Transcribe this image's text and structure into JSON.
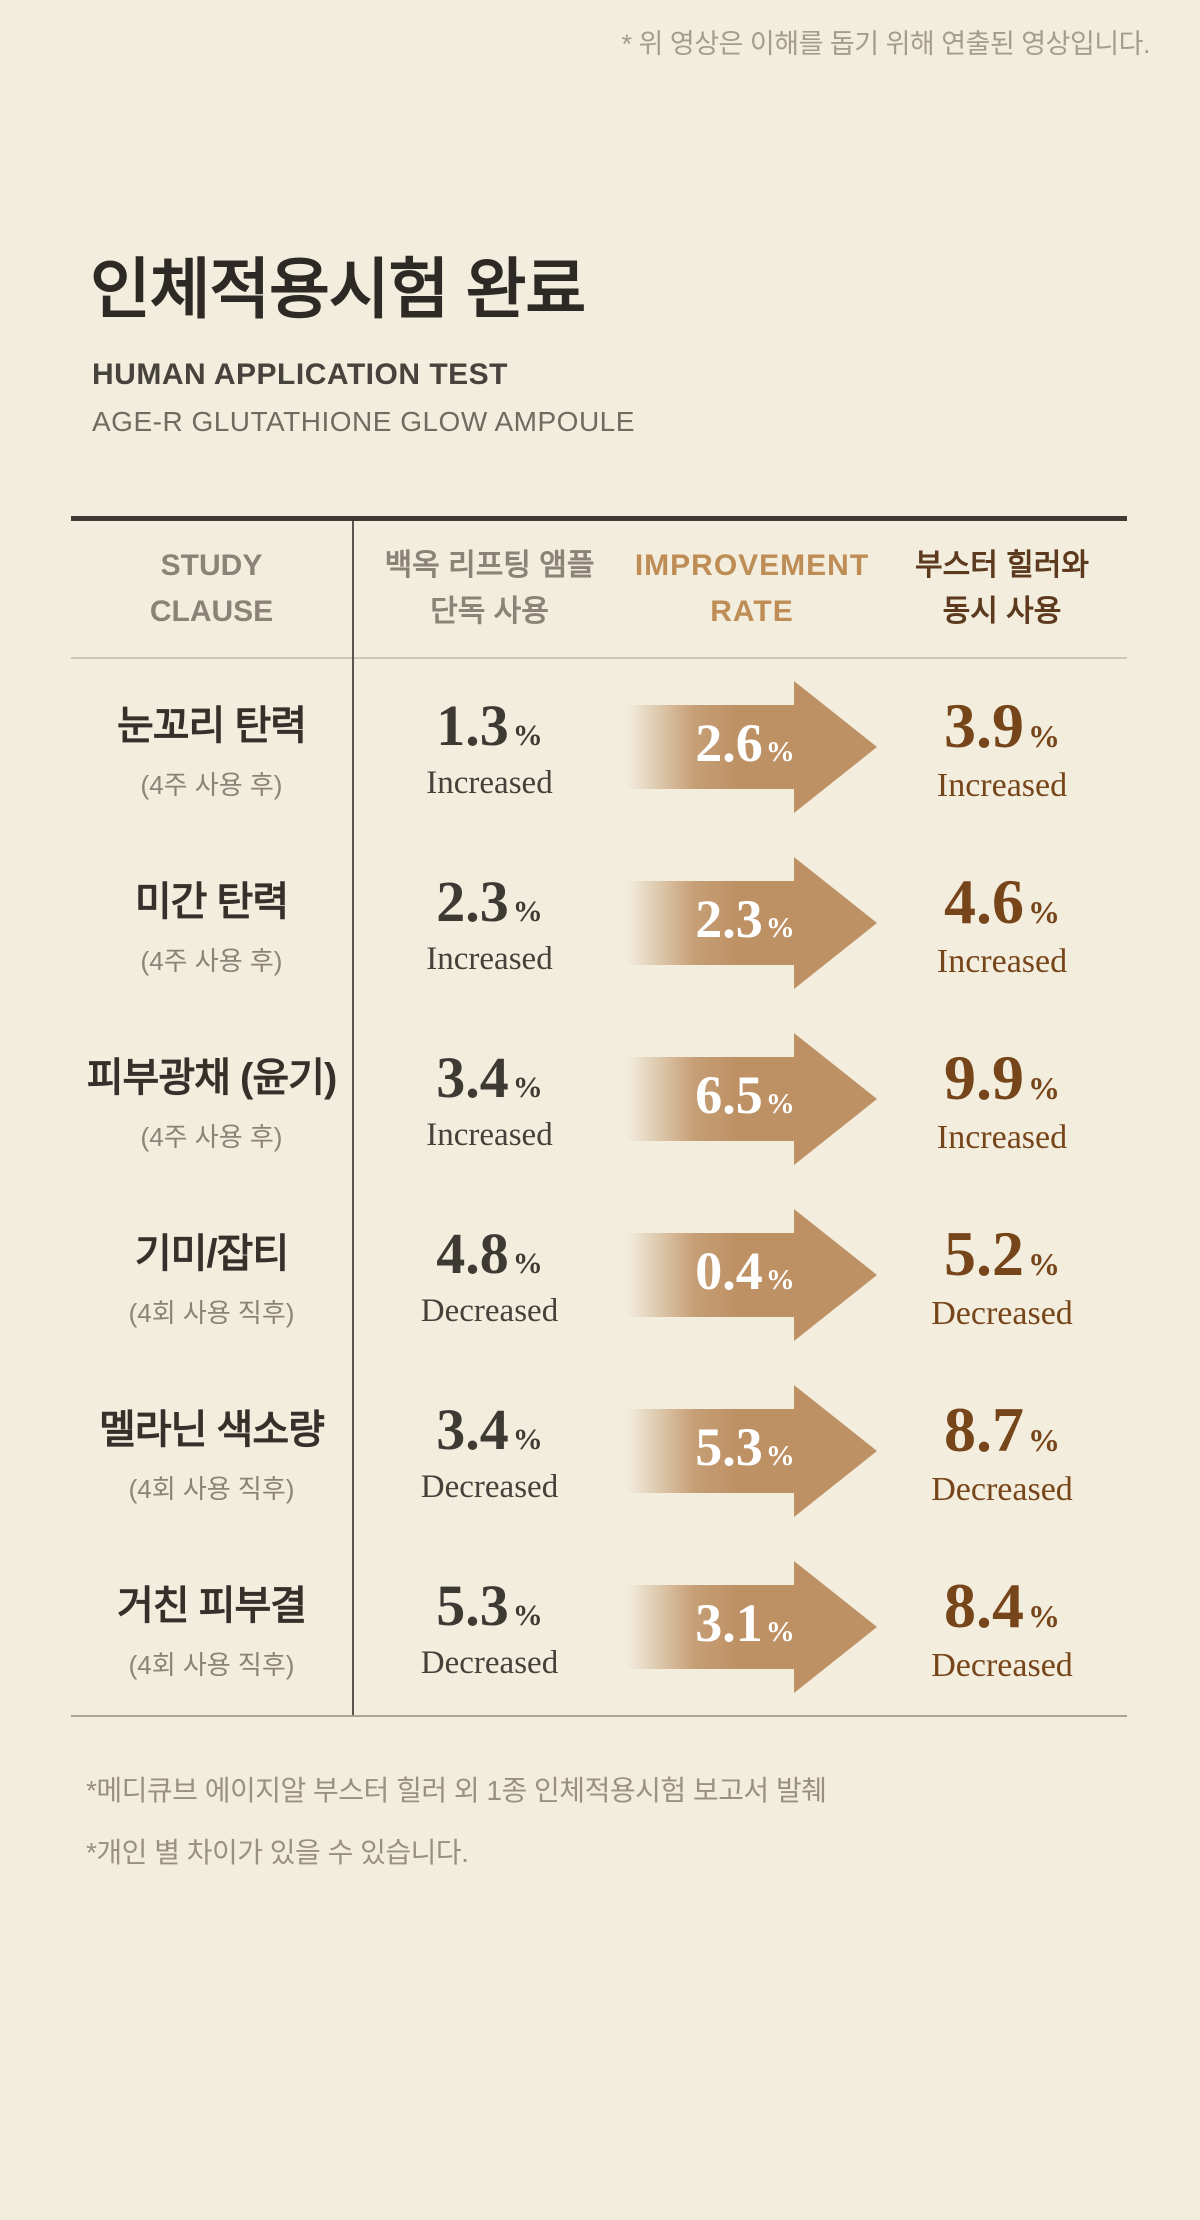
{
  "top_note": "* 위 영상은 이해를 돕기 위해 연출된 영상입니다.",
  "header": {
    "title": "인체적용시험 완료",
    "subtitle_en": "HUMAN APPLICATION TEST",
    "product": "AGE-R GLUTATHIONE GLOW AMPOULE"
  },
  "table": {
    "percent": "%",
    "columns": [
      {
        "line1": "STUDY",
        "line2": "CLAUSE"
      },
      {
        "line1": "백옥 리프팅 앰플",
        "line2": "단독 사용"
      },
      {
        "line1": "IMPROVEMENT",
        "line2": "RATE"
      },
      {
        "line1": "부스터 힐러와",
        "line2": "동시 사용"
      }
    ],
    "rows": [
      {
        "name": "눈꼬리 탄력",
        "condition": "(4주 사용 후)",
        "single_value": "1.3",
        "single_label": "Increased",
        "improvement_value": "2.6",
        "combined_value": "3.9",
        "combined_label": "Increased"
      },
      {
        "name": "미간 탄력",
        "condition": "(4주 사용 후)",
        "single_value": "2.3",
        "single_label": "Increased",
        "improvement_value": "2.3",
        "combined_value": "4.6",
        "combined_label": "Increased"
      },
      {
        "name": "피부광채 (윤기)",
        "condition": "(4주 사용 후)",
        "single_value": "3.4",
        "single_label": "Increased",
        "improvement_value": "6.5",
        "combined_value": "9.9",
        "combined_label": "Increased"
      },
      {
        "name": "기미/잡티",
        "condition": "(4회 사용 직후)",
        "single_value": "4.8",
        "single_label": "Decreased",
        "improvement_value": "0.4",
        "combined_value": "5.2",
        "combined_label": "Decreased"
      },
      {
        "name": "멜라닌 색소량",
        "condition": "(4회 사용 직후)",
        "single_value": "3.4",
        "single_label": "Decreased",
        "improvement_value": "5.3",
        "combined_value": "8.7",
        "combined_label": "Decreased"
      },
      {
        "name": "거친 피부결",
        "condition": "(4회 사용 직후)",
        "single_value": "5.3",
        "single_label": "Decreased",
        "improvement_value": "3.1",
        "combined_value": "8.4",
        "combined_label": "Decreased"
      }
    ]
  },
  "footnotes": [
    "*메디큐브 에이지알 부스터 힐러 외 1종 인체적용시험 보고서 발췌",
    "*개인 별 차이가 있을 수 있습니다."
  ],
  "colors": {
    "background": "#F3EDDE",
    "arrow_tan": "#BE9164",
    "value_brown": "#77451A",
    "header_tan": "#BE8C55",
    "header_brown": "#5D3A1E",
    "text_dark": "#35302A",
    "text_gray": "#8B8476",
    "note_gray": "#A49C8D"
  }
}
